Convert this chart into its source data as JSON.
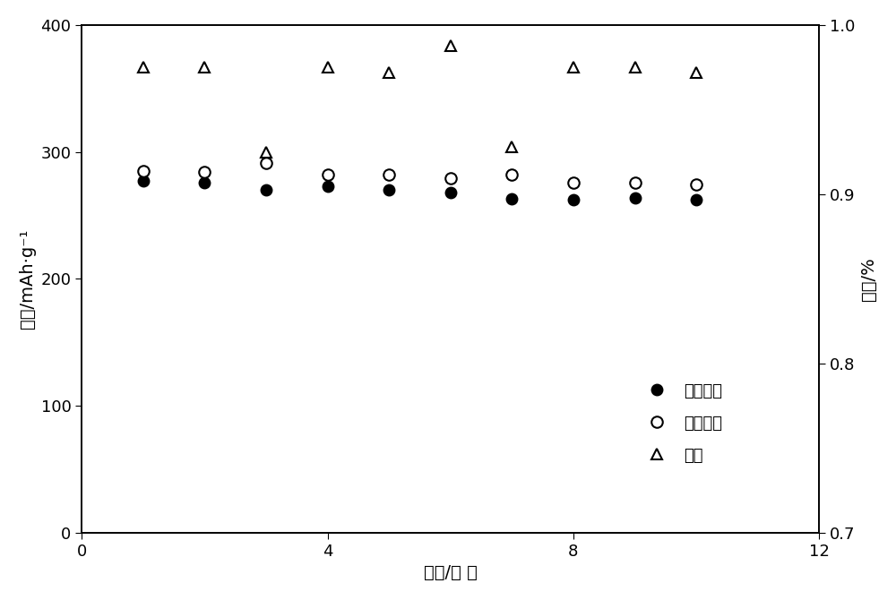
{
  "cycles": [
    1,
    2,
    3,
    4,
    5,
    6,
    7,
    8,
    9,
    10
  ],
  "discharge_capacity": [
    277,
    276,
    270,
    273,
    270,
    268,
    263,
    262,
    264,
    262
  ],
  "charge_capacity": [
    285,
    284,
    291,
    282,
    282,
    279,
    282,
    276,
    276,
    274
  ],
  "efficiency_right": [
    0.975,
    0.975,
    0.925,
    0.975,
    0.972,
    0.988,
    0.928,
    0.975,
    0.975,
    0.972
  ],
  "ylim_left": [
    0,
    400
  ],
  "ylim_right": [
    0.7,
    1.0
  ],
  "xlim": [
    0,
    12
  ],
  "yticks_left": [
    0,
    100,
    200,
    300,
    400
  ],
  "yticks_right": [
    0.7,
    0.8,
    0.9,
    1.0
  ],
  "xticks": [
    0,
    4,
    8,
    12
  ],
  "ylabel_left": "容量/mAh·g⁻¹",
  "ylabel_right": "效率/%",
  "xlabel": "循环/次 数",
  "legend_discharge": "放电容量",
  "legend_charge": "充电容量",
  "legend_efficiency": "效率",
  "marker_size_circle": 9,
  "marker_size_triangle": 9,
  "background_color": "#ffffff"
}
